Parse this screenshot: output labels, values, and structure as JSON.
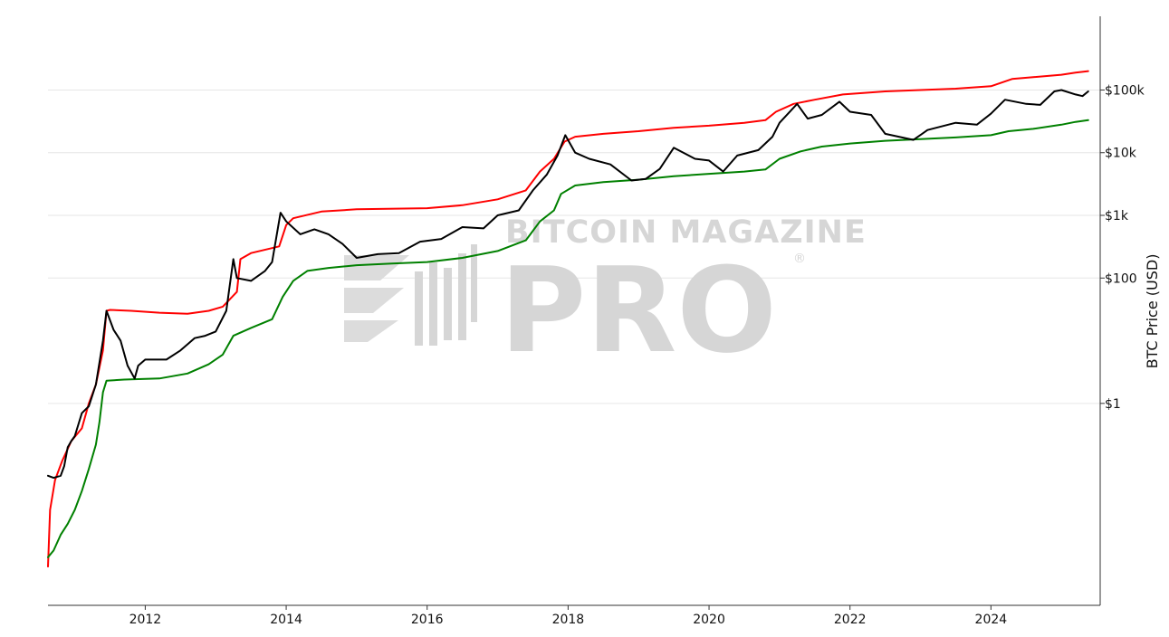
{
  "chart_data": {
    "type": "line",
    "title": "",
    "xlabel": "",
    "ylabel": "BTC Price (USD)",
    "x_range": [
      2010.62,
      2025.55
    ],
    "y_scale": "log",
    "y_range": [
      0.0006,
      1500000
    ],
    "x_ticks": [
      "2012",
      "2014",
      "2016",
      "2018",
      "2020",
      "2022",
      "2024"
    ],
    "y_ticks": [
      {
        "value": 1,
        "label": "$1"
      },
      {
        "value": 100,
        "label": "$100"
      },
      {
        "value": 1000,
        "label": "$1k"
      },
      {
        "value": 10000,
        "label": "$10k"
      },
      {
        "value": 100000,
        "label": "$100k"
      }
    ],
    "grid": "horizontal",
    "legend": "none",
    "series": [
      {
        "color": "#ff0000",
        "points": [
          [
            2010.62,
            0.0025
          ],
          [
            2010.65,
            0.02
          ],
          [
            2010.72,
            0.06
          ],
          [
            2010.82,
            0.12
          ],
          [
            2010.95,
            0.25
          ],
          [
            2011.1,
            0.4
          ],
          [
            2011.2,
            1.0
          ],
          [
            2011.3,
            2.0
          ],
          [
            2011.4,
            7.0
          ],
          [
            2011.45,
            30
          ],
          [
            2011.5,
            31
          ],
          [
            2011.8,
            30
          ],
          [
            2012.2,
            28
          ],
          [
            2012.6,
            27
          ],
          [
            2012.9,
            30
          ],
          [
            2013.1,
            35
          ],
          [
            2013.3,
            60
          ],
          [
            2013.35,
            200
          ],
          [
            2013.5,
            250
          ],
          [
            2013.9,
            320
          ],
          [
            2014.0,
            700
          ],
          [
            2014.1,
            900
          ],
          [
            2014.5,
            1150
          ],
          [
            2015.0,
            1250
          ],
          [
            2016.0,
            1300
          ],
          [
            2016.5,
            1450
          ],
          [
            2017.0,
            1800
          ],
          [
            2017.4,
            2500
          ],
          [
            2017.6,
            5000
          ],
          [
            2017.8,
            8000
          ],
          [
            2017.95,
            15000
          ],
          [
            2018.1,
            18000
          ],
          [
            2018.5,
            20000
          ],
          [
            2019.0,
            22000
          ],
          [
            2019.5,
            25000
          ],
          [
            2020.0,
            27000
          ],
          [
            2020.5,
            30000
          ],
          [
            2020.8,
            33000
          ],
          [
            2020.95,
            45000
          ],
          [
            2021.2,
            60000
          ],
          [
            2021.5,
            70000
          ],
          [
            2021.9,
            85000
          ],
          [
            2022.5,
            95000
          ],
          [
            2023.0,
            100000
          ],
          [
            2023.5,
            105000
          ],
          [
            2024.0,
            115000
          ],
          [
            2024.3,
            150000
          ],
          [
            2024.6,
            160000
          ],
          [
            2025.0,
            175000
          ],
          [
            2025.2,
            190000
          ],
          [
            2025.38,
            200000
          ]
        ]
      },
      {
        "color": "#008000",
        "points": [
          [
            2010.62,
            0.0035
          ],
          [
            2010.7,
            0.0045
          ],
          [
            2010.8,
            0.008
          ],
          [
            2010.9,
            0.012
          ],
          [
            2011.0,
            0.02
          ],
          [
            2011.1,
            0.04
          ],
          [
            2011.2,
            0.09
          ],
          [
            2011.3,
            0.22
          ],
          [
            2011.35,
            0.5
          ],
          [
            2011.4,
            1.5
          ],
          [
            2011.45,
            2.3
          ],
          [
            2011.7,
            2.4
          ],
          [
            2012.2,
            2.5
          ],
          [
            2012.6,
            3.0
          ],
          [
            2012.9,
            4.2
          ],
          [
            2013.1,
            6
          ],
          [
            2013.25,
            12
          ],
          [
            2013.5,
            16
          ],
          [
            2013.8,
            22
          ],
          [
            2013.95,
            50
          ],
          [
            2014.1,
            90
          ],
          [
            2014.3,
            130
          ],
          [
            2014.6,
            145
          ],
          [
            2015.0,
            160
          ],
          [
            2015.5,
            170
          ],
          [
            2016.0,
            180
          ],
          [
            2016.5,
            210
          ],
          [
            2017.0,
            270
          ],
          [
            2017.4,
            400
          ],
          [
            2017.6,
            800
          ],
          [
            2017.8,
            1200
          ],
          [
            2017.9,
            2200
          ],
          [
            2018.1,
            3000
          ],
          [
            2018.5,
            3400
          ],
          [
            2019.0,
            3700
          ],
          [
            2019.5,
            4200
          ],
          [
            2020.0,
            4600
          ],
          [
            2020.5,
            5000
          ],
          [
            2020.8,
            5400
          ],
          [
            2021.0,
            8000
          ],
          [
            2021.3,
            10500
          ],
          [
            2021.6,
            12500
          ],
          [
            2022.0,
            14000
          ],
          [
            2022.5,
            15500
          ],
          [
            2023.0,
            16500
          ],
          [
            2023.5,
            17500
          ],
          [
            2024.0,
            19000
          ],
          [
            2024.25,
            22000
          ],
          [
            2024.6,
            24000
          ],
          [
            2025.0,
            28000
          ],
          [
            2025.2,
            31000
          ],
          [
            2025.38,
            33000
          ]
        ]
      },
      {
        "color": "#000000",
        "points": [
          [
            2010.62,
            0.07
          ],
          [
            2010.7,
            0.065
          ],
          [
            2010.8,
            0.07
          ],
          [
            2010.85,
            0.1
          ],
          [
            2010.9,
            0.2
          ],
          [
            2010.95,
            0.25
          ],
          [
            2011.0,
            0.3
          ],
          [
            2011.1,
            0.7
          ],
          [
            2011.2,
            0.9
          ],
          [
            2011.3,
            2.0
          ],
          [
            2011.4,
            10
          ],
          [
            2011.45,
            30
          ],
          [
            2011.55,
            15
          ],
          [
            2011.65,
            10
          ],
          [
            2011.75,
            4
          ],
          [
            2011.85,
            2.5
          ],
          [
            2011.9,
            4
          ],
          [
            2012.0,
            5
          ],
          [
            2012.3,
            5
          ],
          [
            2012.5,
            7
          ],
          [
            2012.7,
            11
          ],
          [
            2012.85,
            12
          ],
          [
            2013.0,
            14
          ],
          [
            2013.15,
            30
          ],
          [
            2013.25,
            200
          ],
          [
            2013.3,
            100
          ],
          [
            2013.5,
            90
          ],
          [
            2013.7,
            130
          ],
          [
            2013.8,
            180
          ],
          [
            2013.92,
            1100
          ],
          [
            2014.0,
            800
          ],
          [
            2014.2,
            500
          ],
          [
            2014.4,
            600
          ],
          [
            2014.6,
            500
          ],
          [
            2014.8,
            350
          ],
          [
            2015.0,
            210
          ],
          [
            2015.3,
            240
          ],
          [
            2015.6,
            250
          ],
          [
            2015.9,
            380
          ],
          [
            2016.2,
            420
          ],
          [
            2016.5,
            650
          ],
          [
            2016.8,
            620
          ],
          [
            2017.0,
            1000
          ],
          [
            2017.3,
            1200
          ],
          [
            2017.5,
            2500
          ],
          [
            2017.7,
            4500
          ],
          [
            2017.85,
            9000
          ],
          [
            2017.96,
            19000
          ],
          [
            2018.1,
            10000
          ],
          [
            2018.3,
            8000
          ],
          [
            2018.6,
            6500
          ],
          [
            2018.9,
            3600
          ],
          [
            2019.1,
            3800
          ],
          [
            2019.3,
            5500
          ],
          [
            2019.5,
            12000
          ],
          [
            2019.8,
            8000
          ],
          [
            2020.0,
            7500
          ],
          [
            2020.2,
            5000
          ],
          [
            2020.4,
            9000
          ],
          [
            2020.7,
            11000
          ],
          [
            2020.9,
            18000
          ],
          [
            2021.0,
            30000
          ],
          [
            2021.25,
            60000
          ],
          [
            2021.4,
            35000
          ],
          [
            2021.6,
            40000
          ],
          [
            2021.85,
            65000
          ],
          [
            2022.0,
            45000
          ],
          [
            2022.3,
            40000
          ],
          [
            2022.5,
            20000
          ],
          [
            2022.9,
            16000
          ],
          [
            2023.1,
            23000
          ],
          [
            2023.5,
            30000
          ],
          [
            2023.8,
            28000
          ],
          [
            2024.0,
            42000
          ],
          [
            2024.2,
            70000
          ],
          [
            2024.5,
            60000
          ],
          [
            2024.7,
            58000
          ],
          [
            2024.9,
            95000
          ],
          [
            2025.0,
            100000
          ],
          [
            2025.2,
            85000
          ],
          [
            2025.3,
            80000
          ],
          [
            2025.38,
            95000
          ]
        ]
      }
    ]
  },
  "watermark": {
    "line1": "BITCOIN MAGAZINE",
    "line2": "PRO",
    "mark": "®"
  }
}
